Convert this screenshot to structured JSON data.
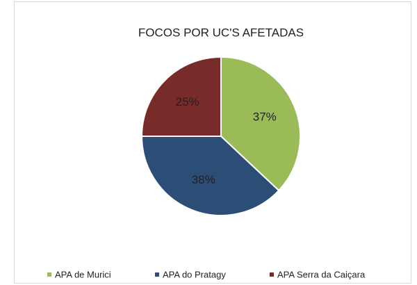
{
  "chart_data": {
    "type": "pie",
    "title": "FOCOS POR UC'S AFETADAS",
    "categories": [
      "APA de Murici",
      "APA do Pratagy",
      "APA Serra da Caiçara"
    ],
    "values": [
      37,
      38,
      25
    ],
    "value_labels": [
      "37%",
      "38%",
      "25%"
    ],
    "colors": [
      "#9bbb59",
      "#2c4d75",
      "#772c2a"
    ],
    "legend": "bottom"
  }
}
